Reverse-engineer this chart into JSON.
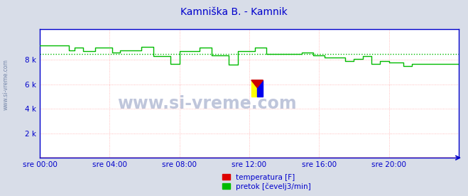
{
  "title": "Kamniška B. - Kamnik",
  "title_color": "#0000cc",
  "bg_color": "#d8dde8",
  "plot_bg_color": "#ffffff",
  "grid_color": "#ffaaaa",
  "border_color": "#0000cc",
  "tick_color": "#0000cc",
  "watermark": "www.si-vreme.com",
  "watermark_color": "#aab0cc",
  "side_label": "www.si-vreme.com",
  "side_label_color": "#7788aa",
  "xlim": [
    0,
    288
  ],
  "ylim": [
    0,
    10500
  ],
  "yticks": [
    2000,
    4000,
    6000,
    8000
  ],
  "ytick_labels": [
    "2 k",
    "4 k",
    "6 k",
    "8 k"
  ],
  "xtick_labels": [
    "sre 00:00",
    "sre 04:00",
    "sre 08:00",
    "sre 12:00",
    "sre 16:00",
    "sre 20:00"
  ],
  "xtick_positions": [
    0,
    48,
    96,
    144,
    192,
    240
  ],
  "temp_color": "#dd0000",
  "flow_color": "#00bb00",
  "avg_color": "#00bb00",
  "avg_value": 8500,
  "legend_temp_label": "temperatura [F]",
  "legend_flow_label": "pretok [čevelj3/min]",
  "flow_vals": [
    9200,
    9200,
    9200,
    9200,
    9200,
    9200,
    9200,
    9200,
    9200,
    9200,
    9200,
    9200,
    9200,
    9200,
    9200,
    9200,
    9200,
    9200,
    9200,
    9200,
    8800,
    8800,
    8800,
    8800,
    9000,
    9000,
    9000,
    9000,
    9000,
    9000,
    8700,
    8700,
    8700,
    8700,
    8700,
    8700,
    8700,
    8700,
    9000,
    9000,
    9000,
    9000,
    9000,
    9000,
    9000,
    9000,
    9000,
    9000,
    9000,
    9000,
    8600,
    8600,
    8600,
    8600,
    8600,
    8800,
    8800,
    8800,
    8800,
    8800,
    8800,
    8800,
    8800,
    8800,
    8800,
    8800,
    8800,
    8800,
    8800,
    8800,
    9100,
    9100,
    9100,
    9100,
    9100,
    9100,
    9100,
    9100,
    8300,
    8300,
    8300,
    8300,
    8300,
    8300,
    8300,
    8300,
    8300,
    8300,
    8300,
    8300,
    7700,
    7700,
    7700,
    7700,
    7700,
    7700,
    8700,
    8700,
    8700,
    8700,
    8700,
    8700,
    8700,
    8700,
    8700,
    8700,
    8700,
    8700,
    8700,
    8700,
    9000,
    9000,
    9000,
    9000,
    9000,
    9000,
    9000,
    9000,
    8400,
    8400,
    8400,
    8400,
    8400,
    8400,
    8400,
    8400,
    8400,
    8400,
    8400,
    8400,
    7600,
    7600,
    7600,
    7600,
    7600,
    7600,
    8700,
    8700,
    8700,
    8700,
    8700,
    8700,
    8700,
    8700,
    8700,
    8700,
    8700,
    8700,
    9000,
    9000,
    9000,
    9000,
    9000,
    9000,
    9000,
    9000,
    8500,
    8500,
    8500,
    8500,
    8500,
    8500,
    8500,
    8500,
    8500,
    8500,
    8500,
    8500,
    8500,
    8500,
    8500,
    8500,
    8500,
    8500,
    8500,
    8500,
    8500,
    8500,
    8500,
    8500,
    8600,
    8600,
    8600,
    8600,
    8600,
    8600,
    8600,
    8600,
    8400,
    8400,
    8400,
    8400,
    8400,
    8400,
    8400,
    8400,
    8200,
    8200,
    8200,
    8200,
    8200,
    8200,
    8200,
    8200,
    8200,
    8200,
    8200,
    8200,
    8200,
    8200,
    7900,
    7900,
    7900,
    7900,
    7900,
    7900,
    8100,
    8100,
    8100,
    8100,
    8100,
    8100,
    8300,
    8300,
    8300,
    8300,
    8300,
    8300,
    7700,
    7700,
    7700,
    7700,
    7700,
    7700,
    7900,
    7900,
    7900,
    7900,
    7900,
    7900,
    7800,
    7800,
    7800,
    7800,
    7800,
    7800,
    7800,
    7800,
    7800,
    7800,
    7500,
    7500,
    7500,
    7500,
    7500,
    7500,
    7700,
    7700,
    7700,
    7700,
    7700,
    7700,
    7700,
    7700,
    7700,
    7700,
    7700,
    7700,
    7700,
    7700,
    7700,
    7700,
    7700,
    7700,
    7700,
    7700,
    7700,
    7700,
    7700,
    7700,
    7700,
    7700,
    7700,
    7700,
    7700,
    7700,
    7700,
    7700,
    7700
  ]
}
